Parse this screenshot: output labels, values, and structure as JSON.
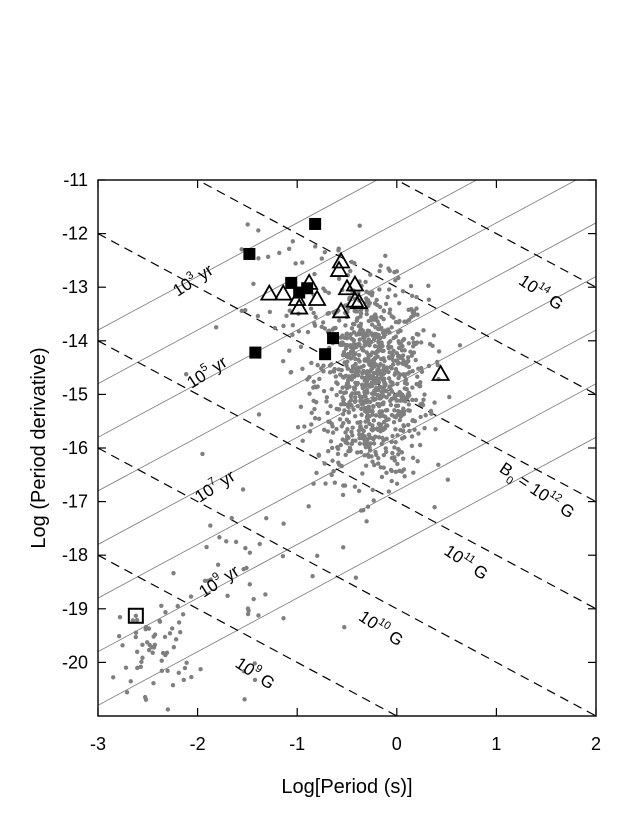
{
  "chart_data": {
    "type": "scatter",
    "title": "",
    "xlabel": "Log[Period (s)]",
    "ylabel": "Log (Period derivative)",
    "xlim": [
      -3,
      2
    ],
    "ylim": [
      -21,
      -11
    ],
    "grid": false,
    "x_ticks": [
      "-3",
      "-2",
      "-1",
      "0",
      "1",
      "2"
    ],
    "y_ticks": [
      "-11",
      "-12",
      "-13",
      "-14",
      "-15",
      "-16",
      "-17",
      "-18",
      "-19",
      "-20"
    ],
    "age_lines_yr": [
      1000.0,
      10000.0,
      100000.0,
      1000000.0,
      10000000.0,
      100000000.0,
      1000000000.0,
      10000000000.0
    ],
    "field_lines_G": [
      1000000000.0,
      10000000000.0,
      100000000000.0,
      1000000000000.0,
      10000000000000.0,
      100000000000000.0,
      1000000000000000.0
    ],
    "annotations": {
      "age_1e3": {
        "base": "10",
        "exp": "3",
        "unit": " yr"
      },
      "age_1e5": {
        "base": "10",
        "exp": "5",
        "unit": " yr"
      },
      "age_1e7": {
        "base": "10",
        "exp": "7",
        "unit": " yr"
      },
      "age_1e9": {
        "base": "10",
        "exp": "9",
        "unit": " yr"
      },
      "field_1e14": {
        "pre": "",
        "base": "10",
        "exp": "14",
        "unit": " G"
      },
      "field_1e12": {
        "pre": "B",
        "sub": "0",
        "eq": " = ",
        "base": "10",
        "exp": "12",
        "unit": " G"
      },
      "field_1e11": {
        "pre": "",
        "base": "10",
        "exp": "11",
        "unit": " G"
      },
      "field_1e10": {
        "pre": "",
        "base": "10",
        "exp": "10",
        "unit": " G"
      },
      "field_1e9": {
        "pre": "",
        "base": "10",
        "exp": "9",
        "unit": " G"
      }
    },
    "series": [
      {
        "marker": "square-filled",
        "points": [
          [
            -1.48,
            -12.38
          ],
          [
            -0.82,
            -11.82
          ],
          [
            -1.06,
            -12.92
          ],
          [
            -0.98,
            -13.1
          ],
          [
            -0.9,
            -13.02
          ],
          [
            -1.42,
            -14.22
          ],
          [
            -0.64,
            -13.95
          ],
          [
            -0.72,
            -14.25
          ]
        ]
      },
      {
        "marker": "triangle-open",
        "points": [
          [
            -1.28,
            -13.12
          ],
          [
            -1.14,
            -13.12
          ],
          [
            -1.0,
            -13.22
          ],
          [
            -0.88,
            -12.92
          ],
          [
            -0.8,
            -13.22
          ],
          [
            -0.98,
            -13.38
          ],
          [
            -0.56,
            -12.52
          ],
          [
            -0.58,
            -12.68
          ],
          [
            -0.5,
            -13.02
          ],
          [
            -0.42,
            -12.95
          ],
          [
            -0.42,
            -13.25
          ],
          [
            -0.56,
            -13.45
          ],
          [
            -0.38,
            -13.28
          ],
          [
            0.44,
            -14.62
          ]
        ]
      },
      {
        "marker": "square-open",
        "points": [
          [
            -2.62,
            -19.13
          ]
        ]
      }
    ],
    "background_population": {
      "marker": "dot-gray",
      "clusters": [
        {
          "x_mean": -0.25,
          "x_sd": 0.28,
          "y_mean": -14.8,
          "y_sd": 0.9,
          "count": 900
        },
        {
          "x_mean": -2.4,
          "x_sd": 0.2,
          "y_mean": -19.7,
          "y_sd": 0.45,
          "count": 60
        },
        {
          "x_mean": -1.6,
          "x_sd": 0.5,
          "y_mean": -18.3,
          "y_sd": 1.0,
          "count": 40
        },
        {
          "x_mean": -0.7,
          "x_sd": 0.5,
          "y_mean": -13.4,
          "y_sd": 0.7,
          "count": 70
        }
      ]
    }
  }
}
